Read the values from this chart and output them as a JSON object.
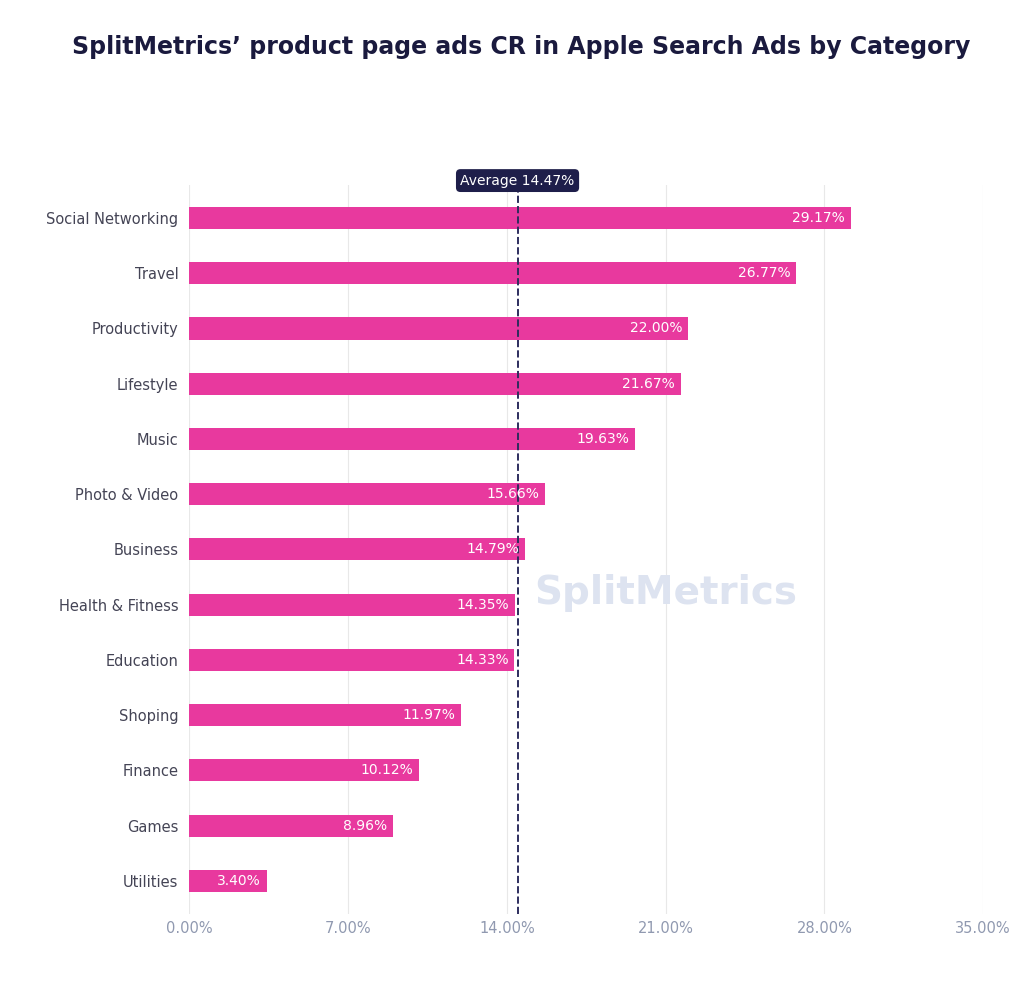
{
  "title": "SplitMetrics’ product page ads CR in Apple Search Ads by Category",
  "categories": [
    "Social Networking",
    "Travel",
    "Productivity",
    "Lifestyle",
    "Music",
    "Photo & Video",
    "Business",
    "Health & Fitness",
    "Education",
    "Shoping",
    "Finance",
    "Games",
    "Utilities"
  ],
  "values": [
    29.17,
    26.77,
    22.0,
    21.67,
    19.63,
    15.66,
    14.79,
    14.35,
    14.33,
    11.97,
    10.12,
    8.96,
    3.4
  ],
  "bar_color": "#e8399e",
  "label_color": "#ffffff",
  "average": 14.47,
  "average_label": "Average 14.47%",
  "average_line_color": "#2d2d5e",
  "average_box_color": "#1e1e4a",
  "average_text_color": "#ffffff",
  "title_color": "#1a1a3e",
  "tick_label_color": "#9099b0",
  "category_label_color": "#444455",
  "xlim": [
    0,
    35
  ],
  "xticks": [
    0,
    7,
    14,
    21,
    28,
    35
  ],
  "xtick_labels": [
    "0.00%",
    "7.00%",
    "14.00%",
    "21.00%",
    "28.00%",
    "35.00%"
  ],
  "title_fontsize": 17,
  "bar_label_fontsize": 10,
  "axis_label_fontsize": 10.5,
  "category_label_fontsize": 10.5,
  "background_color": "#ffffff",
  "watermark_text": "SplitMetrics",
  "watermark_color": "#dde3f0"
}
